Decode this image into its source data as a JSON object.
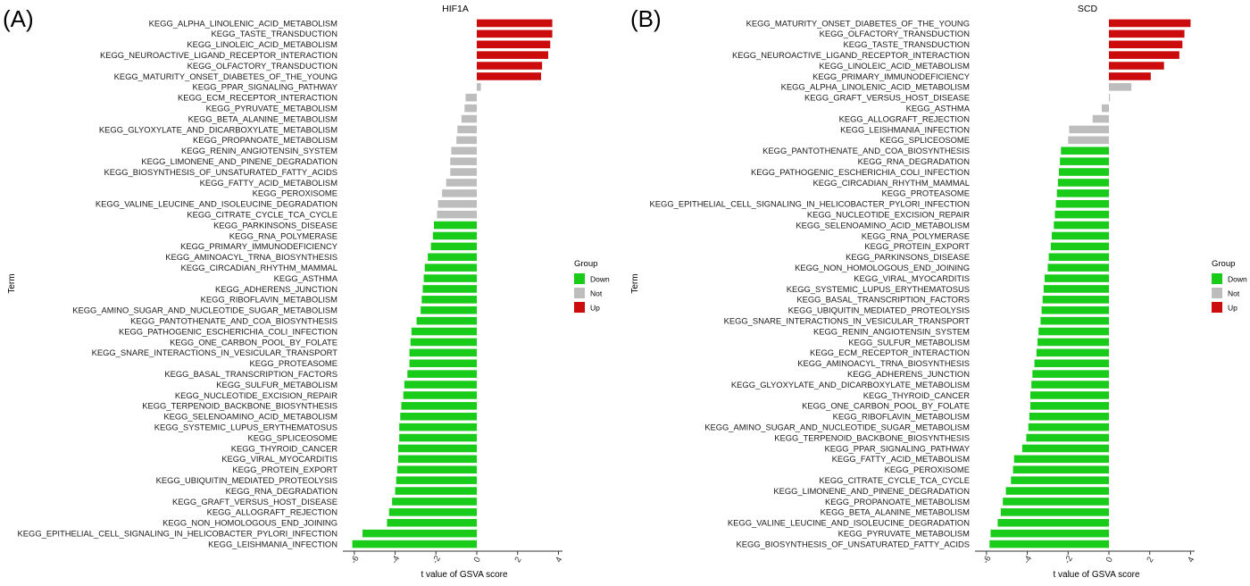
{
  "colors": {
    "Down": "#19cc19",
    "Not": "#bdbdbd",
    "Up": "#cc0c0c"
  },
  "chart_data": [
    {
      "type": "bar",
      "orientation": "horizontal",
      "panel_label": "(A)",
      "title": "HIF1A",
      "xlabel": "t value of GSVA score",
      "ylabel": "Term",
      "xlim": [
        -6.3,
        4.2
      ],
      "xticks": [
        -6,
        -4,
        -2,
        0,
        2,
        4
      ],
      "grid": false,
      "legend": {
        "title": "Group",
        "position": "right",
        "entries": [
          "Down",
          "Not",
          "Up"
        ]
      },
      "categories": [
        "KEGG_ALPHA_LINOLENIC_ACID_METABOLISM",
        "KEGG_TASTE_TRANSDUCTION",
        "KEGG_LINOLEIC_ACID_METABOLISM",
        "KEGG_NEUROACTIVE_LIGAND_RECEPTOR_INTERACTION",
        "KEGG_OLFACTORY_TRANSDUCTION",
        "KEGG_MATURITY_ONSET_DIABETES_OF_THE_YOUNG",
        "KEGG_PPAR_SIGNALING_PATHWAY",
        "KEGG_ECM_RECEPTOR_INTERACTION",
        "KEGG_PYRUVATE_METABOLISM",
        "KEGG_BETA_ALANINE_METABOLISM",
        "KEGG_GLYOXYLATE_AND_DICARBOXYLATE_METABOLISM",
        "KEGG_PROPANOATE_METABOLISM",
        "KEGG_RENIN_ANGIOTENSIN_SYSTEM",
        "KEGG_LIMONENE_AND_PINENE_DEGRADATION",
        "KEGG_BIOSYNTHESIS_OF_UNSATURATED_FATTY_ACIDS",
        "KEGG_FATTY_ACID_METABOLISM",
        "KEGG_PEROXISOME",
        "KEGG_VALINE_LEUCINE_AND_ISOLEUCINE_DEGRADATION",
        "KEGG_CITRATE_CYCLE_TCA_CYCLE",
        "KEGG_PARKINSONS_DISEASE",
        "KEGG_RNA_POLYMERASE",
        "KEGG_PRIMARY_IMMUNODEFICIENCY",
        "KEGG_AMINOACYL_TRNA_BIOSYNTHESIS",
        "KEGG_CIRCADIAN_RHYTHM_MAMMAL",
        "KEGG_ASTHMA",
        "KEGG_ADHERENS_JUNCTION",
        "KEGG_RIBOFLAVIN_METABOLISM",
        "KEGG_AMINO_SUGAR_AND_NUCLEOTIDE_SUGAR_METABOLISM",
        "KEGG_PANTOTHENATE_AND_COA_BIOSYNTHESIS",
        "KEGG_PATHOGENIC_ESCHERICHIA_COLI_INFECTION",
        "KEGG_ONE_CARBON_POOL_BY_FOLATE",
        "KEGG_SNARE_INTERACTIONS_IN_VESICULAR_TRANSPORT",
        "KEGG_PROTEASOME",
        "KEGG_BASAL_TRANSCRIPTION_FACTORS",
        "KEGG_SULFUR_METABOLISM",
        "KEGG_NUCLEOTIDE_EXCISION_REPAIR",
        "KEGG_TERPENOID_BACKBONE_BIOSYNTHESIS",
        "KEGG_SELENOAMINO_ACID_METABOLISM",
        "KEGG_SYSTEMIC_LUPUS_ERYTHEMATOSUS",
        "KEGG_SPLICEOSOME",
        "KEGG_THYROID_CANCER",
        "KEGG_VIRAL_MYOCARDITIS",
        "KEGG_PROTEIN_EXPORT",
        "KEGG_UBIQUITIN_MEDIATED_PROTEOLYSIS",
        "KEGG_RNA_DEGRADATION",
        "KEGG_GRAFT_VERSUS_HOST_DISEASE",
        "KEGG_ALLOGRAFT_REJECTION",
        "KEGG_NON_HOMOLOGOUS_END_JOINING",
        "KEGG_EPITHELIAL_CELL_SIGNALING_IN_HELICOBACTER_PYLORI_INFECTION",
        "KEGG_LEISHMANIA_INFECTION"
      ],
      "values": [
        3.7,
        3.7,
        3.6,
        3.5,
        3.2,
        3.15,
        0.2,
        -0.55,
        -0.6,
        -0.75,
        -0.95,
        -1.0,
        -1.25,
        -1.3,
        -1.3,
        -1.5,
        -1.7,
        -1.9,
        -1.95,
        -2.1,
        -2.15,
        -2.25,
        -2.4,
        -2.55,
        -2.6,
        -2.65,
        -2.7,
        -2.75,
        -2.95,
        -3.2,
        -3.25,
        -3.3,
        -3.3,
        -3.4,
        -3.55,
        -3.6,
        -3.7,
        -3.75,
        -3.8,
        -3.8,
        -3.85,
        -3.85,
        -3.9,
        -3.95,
        -4.0,
        -4.15,
        -4.3,
        -4.4,
        -5.6,
        -6.1
      ],
      "groups": [
        "Up",
        "Up",
        "Up",
        "Up",
        "Up",
        "Up",
        "Not",
        "Not",
        "Not",
        "Not",
        "Not",
        "Not",
        "Not",
        "Not",
        "Not",
        "Not",
        "Not",
        "Not",
        "Not",
        "Down",
        "Down",
        "Down",
        "Down",
        "Down",
        "Down",
        "Down",
        "Down",
        "Down",
        "Down",
        "Down",
        "Down",
        "Down",
        "Down",
        "Down",
        "Down",
        "Down",
        "Down",
        "Down",
        "Down",
        "Down",
        "Down",
        "Down",
        "Down",
        "Down",
        "Down",
        "Down",
        "Down",
        "Down",
        "Down",
        "Down"
      ]
    },
    {
      "type": "bar",
      "orientation": "horizontal",
      "panel_label": "(B)",
      "title": "SCD",
      "xlabel": "t value of GSVA score",
      "ylabel": "Term",
      "xlim": [
        -6.3,
        4.2
      ],
      "xticks": [
        -6,
        -4,
        -2,
        0,
        2,
        4
      ],
      "grid": false,
      "legend": {
        "title": "Group",
        "position": "right",
        "entries": [
          "Down",
          "Not",
          "Up"
        ]
      },
      "categories": [
        "KEGG_MATURITY_ONSET_DIABETES_OF_THE_YOUNG",
        "KEGG_OLFACTORY_TRANSDUCTION",
        "KEGG_TASTE_TRANSDUCTION",
        "KEGG_NEUROACTIVE_LIGAND_RECEPTOR_INTERACTION",
        "KEGG_LINOLEIC_ACID_METABOLISM",
        "KEGG_PRIMARY_IMMUNODEFICIENCY",
        "KEGG_ALPHA_LINOLENIC_ACID_METABOLISM",
        "KEGG_GRAFT_VERSUS_HOST_DISEASE",
        "KEGG_ASTHMA",
        "KEGG_ALLOGRAFT_REJECTION",
        "KEGG_LEISHMANIA_INFECTION",
        "KEGG_SPLICEOSOME",
        "KEGG_PANTOTHENATE_AND_COA_BIOSYNTHESIS",
        "KEGG_RNA_DEGRADATION",
        "KEGG_PATHOGENIC_ESCHERICHIA_COLI_INFECTION",
        "KEGG_CIRCADIAN_RHYTHM_MAMMAL",
        "KEGG_PROTEASOME",
        "KEGG_EPITHELIAL_CELL_SIGNALING_IN_HELICOBACTER_PYLORI_INFECTION",
        "KEGG_NUCLEOTIDE_EXCISION_REPAIR",
        "KEGG_SELENOAMINO_ACID_METABOLISM",
        "KEGG_RNA_POLYMERASE",
        "KEGG_PROTEIN_EXPORT",
        "KEGG_PARKINSONS_DISEASE",
        "KEGG_NON_HOMOLOGOUS_END_JOINING",
        "KEGG_VIRAL_MYOCARDITIS",
        "KEGG_SYSTEMIC_LUPUS_ERYTHEMATOSUS",
        "KEGG_BASAL_TRANSCRIPTION_FACTORS",
        "KEGG_UBIQUITIN_MEDIATED_PROTEOLYSIS",
        "KEGG_SNARE_INTERACTIONS_IN_VESICULAR_TRANSPORT",
        "KEGG_RENIN_ANGIOTENSIN_SYSTEM",
        "KEGG_SULFUR_METABOLISM",
        "KEGG_ECM_RECEPTOR_INTERACTION",
        "KEGG_AMINOACYL_TRNA_BIOSYNTHESIS",
        "KEGG_ADHERENS_JUNCTION",
        "KEGG_GLYOXYLATE_AND_DICARBOXYLATE_METABOLISM",
        "KEGG_THYROID_CANCER",
        "KEGG_ONE_CARBON_POOL_BY_FOLATE",
        "KEGG_RIBOFLAVIN_METABOLISM",
        "KEGG_AMINO_SUGAR_AND_NUCLEOTIDE_SUGAR_METABOLISM",
        "KEGG_TERPENOID_BACKBONE_BIOSYNTHESIS",
        "KEGG_PPAR_SIGNALING_PATHWAY",
        "KEGG_FATTY_ACID_METABOLISM",
        "KEGG_PEROXISOME",
        "KEGG_CITRATE_CYCLE_TCA_CYCLE",
        "KEGG_LIMONENE_AND_PINENE_DEGRADATION",
        "KEGG_PROPANOATE_METABOLISM",
        "KEGG_BETA_ALANINE_METABOLISM",
        "KEGG_VALINE_LEUCINE_AND_ISOLEUCINE_DEGRADATION",
        "KEGG_PYRUVATE_METABOLISM",
        "KEGG_BIOSYNTHESIS_OF_UNSATURATED_FATTY_ACIDS"
      ],
      "values": [
        4.0,
        3.7,
        3.6,
        3.45,
        2.7,
        2.05,
        1.1,
        0.05,
        -0.35,
        -0.8,
        -1.95,
        -2.0,
        -2.35,
        -2.4,
        -2.45,
        -2.5,
        -2.55,
        -2.6,
        -2.65,
        -2.7,
        -2.8,
        -2.85,
        -2.95,
        -3.0,
        -3.15,
        -3.2,
        -3.25,
        -3.3,
        -3.35,
        -3.45,
        -3.5,
        -3.55,
        -3.65,
        -3.75,
        -3.8,
        -3.85,
        -3.85,
        -3.9,
        -3.95,
        -4.05,
        -4.25,
        -4.65,
        -4.7,
        -4.8,
        -5.05,
        -5.2,
        -5.3,
        -5.45,
        -5.8,
        -5.85
      ],
      "groups": [
        "Up",
        "Up",
        "Up",
        "Up",
        "Up",
        "Up",
        "Not",
        "Not",
        "Not",
        "Not",
        "Not",
        "Not",
        "Down",
        "Down",
        "Down",
        "Down",
        "Down",
        "Down",
        "Down",
        "Down",
        "Down",
        "Down",
        "Down",
        "Down",
        "Down",
        "Down",
        "Down",
        "Down",
        "Down",
        "Down",
        "Down",
        "Down",
        "Down",
        "Down",
        "Down",
        "Down",
        "Down",
        "Down",
        "Down",
        "Down",
        "Down",
        "Down",
        "Down",
        "Down",
        "Down",
        "Down",
        "Down",
        "Down",
        "Down",
        "Down"
      ]
    }
  ]
}
